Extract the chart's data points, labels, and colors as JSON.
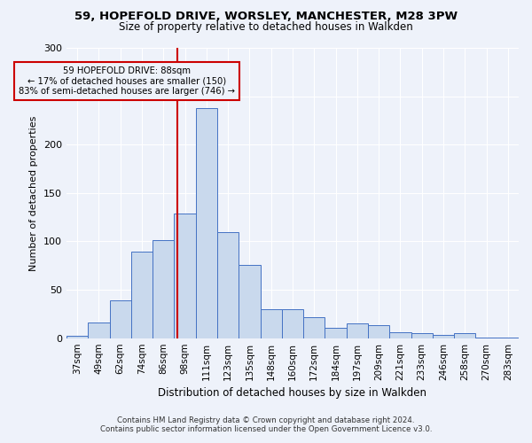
{
  "title1": "59, HOPEFOLD DRIVE, WORSLEY, MANCHESTER, M28 3PW",
  "title2": "Size of property relative to detached houses in Walkden",
  "xlabel": "Distribution of detached houses by size in Walkden",
  "ylabel": "Number of detached properties",
  "footnote1": "Contains HM Land Registry data © Crown copyright and database right 2024.",
  "footnote2": "Contains public sector information licensed under the Open Government Licence v3.0.",
  "annotation_line1": "59 HOPEFOLD DRIVE: 88sqm",
  "annotation_line2": "← 17% of detached houses are smaller (150)",
  "annotation_line3": "83% of semi-detached houses are larger (746) →",
  "bar_labels": [
    "37sqm",
    "49sqm",
    "62sqm",
    "74sqm",
    "86sqm",
    "98sqm",
    "111sqm",
    "123sqm",
    "135sqm",
    "148sqm",
    "160sqm",
    "172sqm",
    "184sqm",
    "197sqm",
    "209sqm",
    "221sqm",
    "233sqm",
    "246sqm",
    "258sqm",
    "270sqm",
    "283sqm"
  ],
  "bar_values": [
    2,
    16,
    39,
    89,
    101,
    129,
    238,
    110,
    76,
    30,
    30,
    22,
    11,
    15,
    13,
    6,
    5,
    3,
    5,
    1,
    1
  ],
  "bar_color": "#c9d9ed",
  "bar_edge_color": "#4472c4",
  "vline_x_index": 4.65,
  "vline_color": "#cc0000",
  "annotation_box_color": "#cc0000",
  "background_color": "#eef2fa",
  "ylim": [
    0,
    300
  ],
  "yticks": [
    0,
    50,
    100,
    150,
    200,
    250,
    300
  ]
}
